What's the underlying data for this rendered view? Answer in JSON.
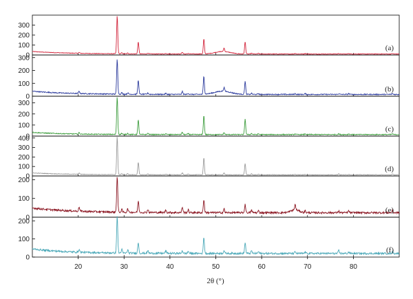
{
  "chart_data": {
    "type": "line",
    "title": "",
    "xlabel": "2θ (°)",
    "ylabel": "",
    "xlim": [
      10,
      90
    ],
    "x_ticks": [
      20,
      30,
      40,
      50,
      60,
      70,
      80
    ],
    "grid": false,
    "legend": "none",
    "peaks_2theta": [
      20.2,
      28.5,
      29.5,
      30.8,
      33.1,
      35.2,
      39.1,
      42.7,
      44.0,
      47.4,
      51.8,
      56.4,
      57.8,
      59.3,
      67.3,
      69.5,
      76.8,
      79.0,
      88.5
    ],
    "panels": [
      {
        "label": "(a)",
        "color": "#d2233a",
        "ylim": [
          0,
          400
        ],
        "y_ticks": [
          0,
          100,
          200,
          300
        ],
        "baseline": 10,
        "noise": 3,
        "ramp": 25,
        "ramp_width": 8,
        "peak_heights": [
          8,
          380,
          10,
          8,
          120,
          8,
          6,
          18,
          6,
          150,
          35,
          120,
          8,
          6,
          6,
          6,
          5,
          5,
          5
        ],
        "humps": [
          {
            "x": 51.5,
            "width": 1.6,
            "height": 25
          }
        ]
      },
      {
        "label": "(b)",
        "color": "#2b3a9c",
        "ylim": [
          0,
          320
        ],
        "y_ticks": [
          0,
          100,
          200,
          300
        ],
        "baseline": 14,
        "noise": 4,
        "ramp": 25,
        "ramp_width": 8,
        "peak_heights": [
          18,
          270,
          12,
          10,
          110,
          10,
          8,
          22,
          8,
          140,
          30,
          100,
          8,
          6,
          6,
          6,
          6,
          6,
          6
        ],
        "humps": [
          {
            "x": 51.5,
            "width": 1.8,
            "height": 25
          }
        ]
      },
      {
        "label": "(c)",
        "color": "#3c9c3c",
        "ylim": [
          0,
          360
        ],
        "y_ticks": [
          0,
          100,
          200,
          300
        ],
        "baseline": 14,
        "noise": 4,
        "ramp": 20,
        "ramp_width": 7,
        "peak_heights": [
          12,
          340,
          10,
          10,
          130,
          10,
          8,
          20,
          8,
          170,
          18,
          140,
          10,
          6,
          6,
          6,
          6,
          6,
          6
        ],
        "humps": []
      },
      {
        "label": "(d)",
        "color": "#9a9a9a",
        "ylim": [
          0,
          420
        ],
        "y_ticks": [
          0,
          100,
          200,
          300,
          400
        ],
        "baseline": 12,
        "noise": 3,
        "ramp": 20,
        "ramp_width": 8,
        "peak_heights": [
          15,
          400,
          10,
          10,
          130,
          10,
          8,
          20,
          8,
          180,
          20,
          120,
          10,
          6,
          6,
          6,
          12,
          6,
          8
        ],
        "humps": []
      },
      {
        "label": "(e)",
        "color": "#8a1420",
        "ylim": [
          0,
          220
        ],
        "y_ticks": [
          0,
          100,
          200
        ],
        "baseline": 24,
        "noise": 5,
        "ramp": 25,
        "ramp_width": 9,
        "peak_heights": [
          22,
          190,
          14,
          18,
          60,
          16,
          14,
          30,
          14,
          70,
          20,
          44,
          14,
          10,
          28,
          10,
          10,
          10,
          10
        ],
        "humps": [
          {
            "x": 67.3,
            "width": 0.9,
            "height": 15
          }
        ]
      },
      {
        "label": "(f)",
        "color": "#4aa8b8",
        "ylim": [
          0,
          220
        ],
        "y_ticks": [
          0,
          100,
          200
        ],
        "baseline": 20,
        "noise": 5,
        "ramp": 25,
        "ramp_width": 8,
        "peak_heights": [
          16,
          205,
          20,
          18,
          60,
          14,
          14,
          16,
          12,
          90,
          16,
          60,
          14,
          10,
          8,
          8,
          16,
          8,
          10
        ],
        "humps": []
      }
    ]
  }
}
